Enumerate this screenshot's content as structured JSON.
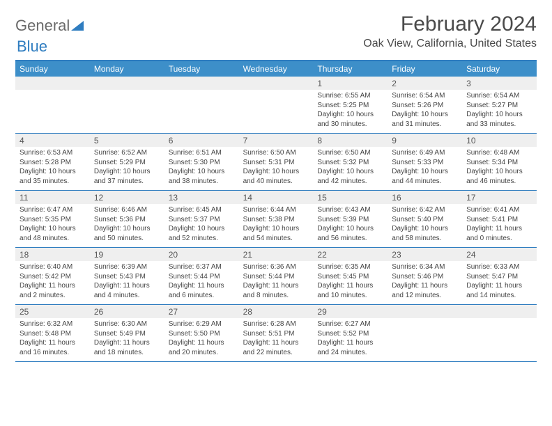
{
  "logo": {
    "text_a": "General",
    "text_b": "Blue"
  },
  "title": "February 2024",
  "location": "Oak View, California, United States",
  "colors": {
    "header_bg": "#3d8fc9",
    "border": "#2f7dc0",
    "daynum_bg": "#efefef",
    "text": "#444444"
  },
  "day_names": [
    "Sunday",
    "Monday",
    "Tuesday",
    "Wednesday",
    "Thursday",
    "Friday",
    "Saturday"
  ],
  "weeks": [
    [
      null,
      null,
      null,
      null,
      {
        "n": "1",
        "sr": "Sunrise: 6:55 AM",
        "ss": "Sunset: 5:25 PM",
        "dl": "Daylight: 10 hours and 30 minutes."
      },
      {
        "n": "2",
        "sr": "Sunrise: 6:54 AM",
        "ss": "Sunset: 5:26 PM",
        "dl": "Daylight: 10 hours and 31 minutes."
      },
      {
        "n": "3",
        "sr": "Sunrise: 6:54 AM",
        "ss": "Sunset: 5:27 PM",
        "dl": "Daylight: 10 hours and 33 minutes."
      }
    ],
    [
      {
        "n": "4",
        "sr": "Sunrise: 6:53 AM",
        "ss": "Sunset: 5:28 PM",
        "dl": "Daylight: 10 hours and 35 minutes."
      },
      {
        "n": "5",
        "sr": "Sunrise: 6:52 AM",
        "ss": "Sunset: 5:29 PM",
        "dl": "Daylight: 10 hours and 37 minutes."
      },
      {
        "n": "6",
        "sr": "Sunrise: 6:51 AM",
        "ss": "Sunset: 5:30 PM",
        "dl": "Daylight: 10 hours and 38 minutes."
      },
      {
        "n": "7",
        "sr": "Sunrise: 6:50 AM",
        "ss": "Sunset: 5:31 PM",
        "dl": "Daylight: 10 hours and 40 minutes."
      },
      {
        "n": "8",
        "sr": "Sunrise: 6:50 AM",
        "ss": "Sunset: 5:32 PM",
        "dl": "Daylight: 10 hours and 42 minutes."
      },
      {
        "n": "9",
        "sr": "Sunrise: 6:49 AM",
        "ss": "Sunset: 5:33 PM",
        "dl": "Daylight: 10 hours and 44 minutes."
      },
      {
        "n": "10",
        "sr": "Sunrise: 6:48 AM",
        "ss": "Sunset: 5:34 PM",
        "dl": "Daylight: 10 hours and 46 minutes."
      }
    ],
    [
      {
        "n": "11",
        "sr": "Sunrise: 6:47 AM",
        "ss": "Sunset: 5:35 PM",
        "dl": "Daylight: 10 hours and 48 minutes."
      },
      {
        "n": "12",
        "sr": "Sunrise: 6:46 AM",
        "ss": "Sunset: 5:36 PM",
        "dl": "Daylight: 10 hours and 50 minutes."
      },
      {
        "n": "13",
        "sr": "Sunrise: 6:45 AM",
        "ss": "Sunset: 5:37 PM",
        "dl": "Daylight: 10 hours and 52 minutes."
      },
      {
        "n": "14",
        "sr": "Sunrise: 6:44 AM",
        "ss": "Sunset: 5:38 PM",
        "dl": "Daylight: 10 hours and 54 minutes."
      },
      {
        "n": "15",
        "sr": "Sunrise: 6:43 AM",
        "ss": "Sunset: 5:39 PM",
        "dl": "Daylight: 10 hours and 56 minutes."
      },
      {
        "n": "16",
        "sr": "Sunrise: 6:42 AM",
        "ss": "Sunset: 5:40 PM",
        "dl": "Daylight: 10 hours and 58 minutes."
      },
      {
        "n": "17",
        "sr": "Sunrise: 6:41 AM",
        "ss": "Sunset: 5:41 PM",
        "dl": "Daylight: 11 hours and 0 minutes."
      }
    ],
    [
      {
        "n": "18",
        "sr": "Sunrise: 6:40 AM",
        "ss": "Sunset: 5:42 PM",
        "dl": "Daylight: 11 hours and 2 minutes."
      },
      {
        "n": "19",
        "sr": "Sunrise: 6:39 AM",
        "ss": "Sunset: 5:43 PM",
        "dl": "Daylight: 11 hours and 4 minutes."
      },
      {
        "n": "20",
        "sr": "Sunrise: 6:37 AM",
        "ss": "Sunset: 5:44 PM",
        "dl": "Daylight: 11 hours and 6 minutes."
      },
      {
        "n": "21",
        "sr": "Sunrise: 6:36 AM",
        "ss": "Sunset: 5:44 PM",
        "dl": "Daylight: 11 hours and 8 minutes."
      },
      {
        "n": "22",
        "sr": "Sunrise: 6:35 AM",
        "ss": "Sunset: 5:45 PM",
        "dl": "Daylight: 11 hours and 10 minutes."
      },
      {
        "n": "23",
        "sr": "Sunrise: 6:34 AM",
        "ss": "Sunset: 5:46 PM",
        "dl": "Daylight: 11 hours and 12 minutes."
      },
      {
        "n": "24",
        "sr": "Sunrise: 6:33 AM",
        "ss": "Sunset: 5:47 PM",
        "dl": "Daylight: 11 hours and 14 minutes."
      }
    ],
    [
      {
        "n": "25",
        "sr": "Sunrise: 6:32 AM",
        "ss": "Sunset: 5:48 PM",
        "dl": "Daylight: 11 hours and 16 minutes."
      },
      {
        "n": "26",
        "sr": "Sunrise: 6:30 AM",
        "ss": "Sunset: 5:49 PM",
        "dl": "Daylight: 11 hours and 18 minutes."
      },
      {
        "n": "27",
        "sr": "Sunrise: 6:29 AM",
        "ss": "Sunset: 5:50 PM",
        "dl": "Daylight: 11 hours and 20 minutes."
      },
      {
        "n": "28",
        "sr": "Sunrise: 6:28 AM",
        "ss": "Sunset: 5:51 PM",
        "dl": "Daylight: 11 hours and 22 minutes."
      },
      {
        "n": "29",
        "sr": "Sunrise: 6:27 AM",
        "ss": "Sunset: 5:52 PM",
        "dl": "Daylight: 11 hours and 24 minutes."
      },
      null,
      null
    ]
  ]
}
